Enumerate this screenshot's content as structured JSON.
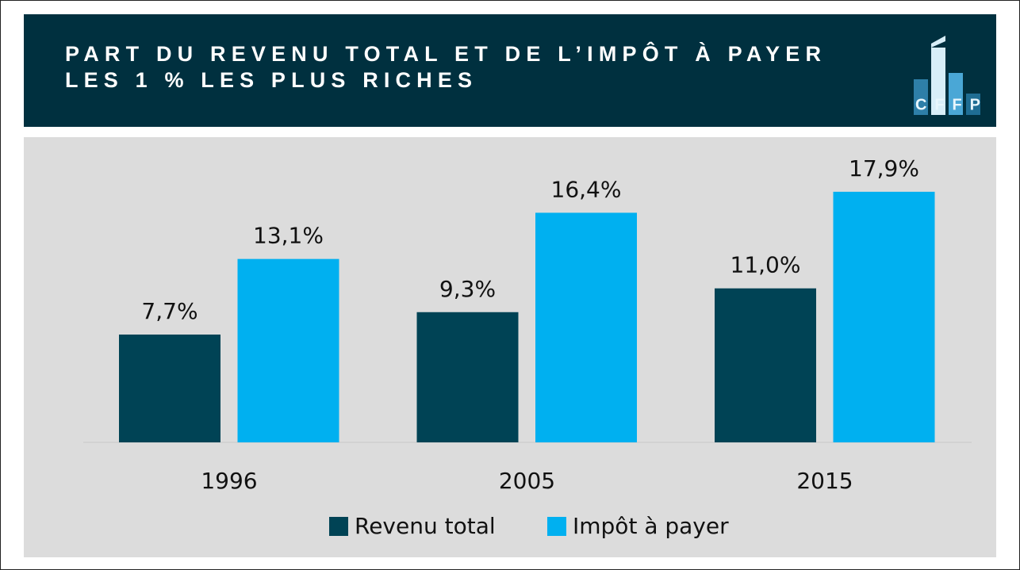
{
  "chart_data": {
    "type": "bar",
    "title": [
      "PART DU REVENU TOTAL ET DE L’IMPÔT À PAYER",
      "LES 1 % LES PLUS RICHES"
    ],
    "logo_text": "CFFP",
    "categories": [
      "1996",
      "2005",
      "2015"
    ],
    "series": [
      {
        "name": "Revenu total",
        "color": "#004355",
        "values": [
          7.7,
          9.3,
          11.0
        ],
        "value_labels": [
          "7,7%",
          "9,3%",
          "11,0%"
        ]
      },
      {
        "name": "Impôt à payer",
        "color": "#00b0f0",
        "values": [
          13.1,
          16.4,
          17.9
        ],
        "value_labels": [
          "13,1%",
          "16,4%",
          "17,9%"
        ]
      }
    ],
    "legend": "bottom"
  }
}
